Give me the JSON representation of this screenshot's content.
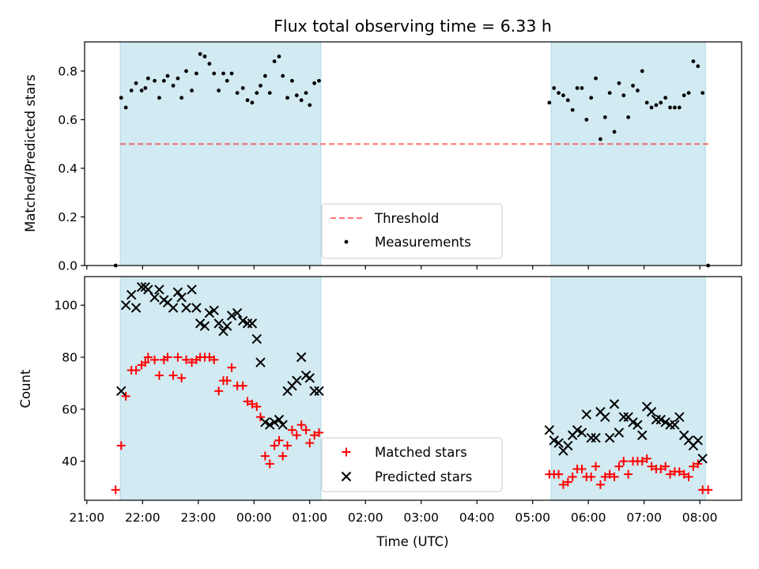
{
  "colors": {
    "band": "#add8e6",
    "threshold": "#ff0000",
    "measurement": "#000000",
    "matched": "#ff0000",
    "predicted": "#000000"
  },
  "chart_data": [
    {
      "type": "scatter",
      "title": "Flux total observing time = 6.33 h",
      "xlabel": "",
      "ylabel": "Matched/Predicted stars",
      "ylim": [
        0,
        0.92
      ],
      "yticks": [
        "0.0",
        "0.2",
        "0.4",
        "0.6",
        "0.8"
      ],
      "ytick_values": [
        0,
        0.2,
        0.4,
        0.6,
        0.8
      ],
      "shaded_intervals": [
        [
          "21:36",
          "01:12"
        ],
        [
          "05:20",
          "08:06"
        ]
      ],
      "threshold": {
        "name": "Threshold",
        "y": 0.5,
        "x_range": [
          "21:36",
          "08:12"
        ]
      },
      "series": [
        {
          "name": "Measurements",
          "points": [
            [
              "21:31",
              0.0
            ],
            [
              "21:37",
              0.69
            ],
            [
              "21:42",
              0.65
            ],
            [
              "21:48",
              0.72
            ],
            [
              "21:53",
              0.75
            ],
            [
              "21:59",
              0.72
            ],
            [
              "22:03",
              0.73
            ],
            [
              "22:06",
              0.77
            ],
            [
              "22:13",
              0.76
            ],
            [
              "22:18",
              0.69
            ],
            [
              "22:23",
              0.76
            ],
            [
              "22:27",
              0.78
            ],
            [
              "22:33",
              0.74
            ],
            [
              "22:38",
              0.77
            ],
            [
              "22:42",
              0.69
            ],
            [
              "22:47",
              0.8
            ],
            [
              "22:53",
              0.72
            ],
            [
              "22:58",
              0.79
            ],
            [
              "23:02",
              0.87
            ],
            [
              "23:07",
              0.86
            ],
            [
              "23:12",
              0.83
            ],
            [
              "23:17",
              0.79
            ],
            [
              "23:22",
              0.72
            ],
            [
              "23:27",
              0.79
            ],
            [
              "23:31",
              0.76
            ],
            [
              "23:36",
              0.79
            ],
            [
              "23:42",
              0.71
            ],
            [
              "23:48",
              0.73
            ],
            [
              "23:53",
              0.68
            ],
            [
              "23:58",
              0.67
            ],
            [
              "00:03",
              0.71
            ],
            [
              "00:07",
              0.74
            ],
            [
              "00:12",
              0.78
            ],
            [
              "00:17",
              0.71
            ],
            [
              "00:22",
              0.84
            ],
            [
              "00:27",
              0.86
            ],
            [
              "00:31",
              0.78
            ],
            [
              "00:36",
              0.69
            ],
            [
              "00:41",
              0.76
            ],
            [
              "00:46",
              0.7
            ],
            [
              "00:51",
              0.68
            ],
            [
              "00:56",
              0.71
            ],
            [
              "01:00",
              0.66
            ],
            [
              "01:05",
              0.75
            ],
            [
              "01:10",
              0.76
            ],
            [
              "05:18",
              0.67
            ],
            [
              "05:23",
              0.73
            ],
            [
              "05:28",
              0.71
            ],
            [
              "05:33",
              0.7
            ],
            [
              "05:38",
              0.68
            ],
            [
              "05:43",
              0.64
            ],
            [
              "05:48",
              0.73
            ],
            [
              "05:53",
              0.73
            ],
            [
              "05:58",
              0.6
            ],
            [
              "06:03",
              0.69
            ],
            [
              "06:08",
              0.77
            ],
            [
              "06:13",
              0.52
            ],
            [
              "06:18",
              0.61
            ],
            [
              "06:23",
              0.71
            ],
            [
              "06:28",
              0.55
            ],
            [
              "06:33",
              0.75
            ],
            [
              "06:38",
              0.7
            ],
            [
              "06:43",
              0.61
            ],
            [
              "06:48",
              0.74
            ],
            [
              "06:53",
              0.72
            ],
            [
              "06:58",
              0.8
            ],
            [
              "07:03",
              0.67
            ],
            [
              "07:08",
              0.65
            ],
            [
              "07:13",
              0.66
            ],
            [
              "07:18",
              0.67
            ],
            [
              "07:23",
              0.69
            ],
            [
              "07:28",
              0.65
            ],
            [
              "07:33",
              0.65
            ],
            [
              "07:38",
              0.65
            ],
            [
              "07:43",
              0.7
            ],
            [
              "07:48",
              0.71
            ],
            [
              "07:53",
              0.84
            ],
            [
              "07:58",
              0.82
            ],
            [
              "08:03",
              0.71
            ],
            [
              "08:09",
              0.0
            ]
          ]
        }
      ],
      "legend": [
        "Threshold",
        "Measurements"
      ],
      "legend_position": "lower center"
    },
    {
      "type": "scatter",
      "title": "",
      "xlabel": "Time (UTC)",
      "ylabel": "Count",
      "ylim": [
        25,
        111
      ],
      "yticks": [
        "40",
        "60",
        "80",
        "100"
      ],
      "ytick_values": [
        40,
        60,
        80,
        100
      ],
      "xticks": [
        "21:00",
        "22:00",
        "23:00",
        "00:00",
        "01:00",
        "02:00",
        "03:00",
        "04:00",
        "05:00",
        "06:00",
        "07:00",
        "08:00"
      ],
      "shaded_intervals": [
        [
          "21:36",
          "01:12"
        ],
        [
          "05:20",
          "08:06"
        ]
      ],
      "series": [
        {
          "name": "Matched stars",
          "marker": "+",
          "points": [
            [
              "21:31",
              29
            ],
            [
              "21:37",
              46
            ],
            [
              "21:42",
              65
            ],
            [
              "21:48",
              75
            ],
            [
              "21:53",
              75
            ],
            [
              "21:59",
              77
            ],
            [
              "22:03",
              78
            ],
            [
              "22:06",
              80
            ],
            [
              "22:13",
              79
            ],
            [
              "22:18",
              73
            ],
            [
              "22:23",
              79
            ],
            [
              "22:27",
              80
            ],
            [
              "22:33",
              73
            ],
            [
              "22:38",
              80
            ],
            [
              "22:42",
              72
            ],
            [
              "22:47",
              79
            ],
            [
              "22:53",
              78
            ],
            [
              "22:58",
              79
            ],
            [
              "23:02",
              80
            ],
            [
              "23:07",
              80
            ],
            [
              "23:12",
              80
            ],
            [
              "23:17",
              79
            ],
            [
              "23:22",
              67
            ],
            [
              "23:27",
              71
            ],
            [
              "23:31",
              71
            ],
            [
              "23:36",
              76
            ],
            [
              "23:42",
              69
            ],
            [
              "23:48",
              69
            ],
            [
              "23:53",
              63
            ],
            [
              "23:58",
              62
            ],
            [
              "00:03",
              61
            ],
            [
              "00:07",
              57
            ],
            [
              "00:12",
              42
            ],
            [
              "00:17",
              39
            ],
            [
              "00:22",
              46
            ],
            [
              "00:27",
              48
            ],
            [
              "00:31",
              42
            ],
            [
              "00:36",
              46
            ],
            [
              "00:41",
              52
            ],
            [
              "00:46",
              50
            ],
            [
              "00:51",
              54
            ],
            [
              "00:56",
              52
            ],
            [
              "01:00",
              47
            ],
            [
              "01:05",
              50
            ],
            [
              "01:10",
              51
            ],
            [
              "05:18",
              35
            ],
            [
              "05:23",
              35
            ],
            [
              "05:28",
              35
            ],
            [
              "05:33",
              31
            ],
            [
              "05:38",
              32
            ],
            [
              "05:43",
              34
            ],
            [
              "05:48",
              37
            ],
            [
              "05:53",
              37
            ],
            [
              "05:58",
              34
            ],
            [
              "06:03",
              34
            ],
            [
              "06:08",
              38
            ],
            [
              "06:13",
              31
            ],
            [
              "06:18",
              34
            ],
            [
              "06:23",
              35
            ],
            [
              "06:28",
              34
            ],
            [
              "06:33",
              38
            ],
            [
              "06:38",
              40
            ],
            [
              "06:43",
              35
            ],
            [
              "06:48",
              40
            ],
            [
              "06:53",
              40
            ],
            [
              "06:58",
              40
            ],
            [
              "07:03",
              41
            ],
            [
              "07:08",
              38
            ],
            [
              "07:13",
              37
            ],
            [
              "07:18",
              37
            ],
            [
              "07:23",
              38
            ],
            [
              "07:28",
              35
            ],
            [
              "07:33",
              36
            ],
            [
              "07:38",
              36
            ],
            [
              "07:43",
              35
            ],
            [
              "07:48",
              34
            ],
            [
              "07:53",
              38
            ],
            [
              "07:58",
              39
            ],
            [
              "08:03",
              29
            ],
            [
              "08:09",
              29
            ]
          ]
        },
        {
          "name": "Predicted stars",
          "marker": "x",
          "points": [
            [
              "21:37",
              67
            ],
            [
              "21:42",
              100
            ],
            [
              "21:48",
              104
            ],
            [
              "21:53",
              99
            ],
            [
              "21:59",
              107
            ],
            [
              "22:03",
              107
            ],
            [
              "22:06",
              106
            ],
            [
              "22:13",
              103
            ],
            [
              "22:18",
              106
            ],
            [
              "22:23",
              102
            ],
            [
              "22:27",
              101
            ],
            [
              "22:33",
              99
            ],
            [
              "22:38",
              105
            ],
            [
              "22:42",
              103
            ],
            [
              "22:47",
              99
            ],
            [
              "22:53",
              106
            ],
            [
              "22:58",
              99
            ],
            [
              "23:02",
              93
            ],
            [
              "23:07",
              92
            ],
            [
              "23:12",
              97
            ],
            [
              "23:17",
              98
            ],
            [
              "23:22",
              93
            ],
            [
              "23:27",
              90
            ],
            [
              "23:31",
              92
            ],
            [
              "23:36",
              96
            ],
            [
              "23:42",
              97
            ],
            [
              "23:48",
              94
            ],
            [
              "23:53",
              93
            ],
            [
              "23:58",
              93
            ],
            [
              "00:03",
              87
            ],
            [
              "00:07",
              78
            ],
            [
              "00:12",
              55
            ],
            [
              "00:17",
              54
            ],
            [
              "00:22",
              55
            ],
            [
              "00:27",
              56
            ],
            [
              "00:31",
              54
            ],
            [
              "00:36",
              67
            ],
            [
              "00:41",
              69
            ],
            [
              "00:46",
              71
            ],
            [
              "00:51",
              80
            ],
            [
              "00:56",
              73
            ],
            [
              "01:00",
              72
            ],
            [
              "01:05",
              67
            ],
            [
              "01:10",
              67
            ],
            [
              "05:18",
              52
            ],
            [
              "05:23",
              48
            ],
            [
              "05:28",
              47
            ],
            [
              "05:33",
              44
            ],
            [
              "05:38",
              46
            ],
            [
              "05:43",
              50
            ],
            [
              "05:48",
              52
            ],
            [
              "05:53",
              51
            ],
            [
              "05:58",
              58
            ],
            [
              "06:03",
              49
            ],
            [
              "06:08",
              49
            ],
            [
              "06:13",
              59
            ],
            [
              "06:18",
              57
            ],
            [
              "06:23",
              49
            ],
            [
              "06:28",
              62
            ],
            [
              "06:33",
              51
            ],
            [
              "06:38",
              57
            ],
            [
              "06:43",
              57
            ],
            [
              "06:48",
              55
            ],
            [
              "06:53",
              54
            ],
            [
              "06:58",
              50
            ],
            [
              "07:03",
              61
            ],
            [
              "07:08",
              59
            ],
            [
              "07:13",
              56
            ],
            [
              "07:18",
              56
            ],
            [
              "07:23",
              55
            ],
            [
              "07:28",
              54
            ],
            [
              "07:33",
              54
            ],
            [
              "07:38",
              57
            ],
            [
              "07:43",
              50
            ],
            [
              "07:48",
              48
            ],
            [
              "07:53",
              46
            ],
            [
              "07:58",
              48
            ],
            [
              "08:03",
              41
            ]
          ]
        }
      ],
      "legend": [
        "Matched stars",
        "Predicted stars"
      ],
      "legend_position": "lower center"
    }
  ]
}
